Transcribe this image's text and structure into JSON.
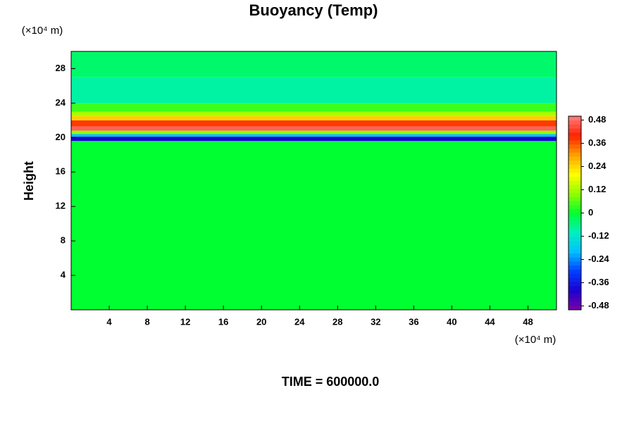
{
  "chart_data": {
    "type": "heatmap",
    "title": "Buoyancy (Temp)",
    "y_unit": "(×10⁴ m)",
    "x_unit": "(×10⁴ m)",
    "y_label": "Height",
    "footer": "TIME = 600000.0",
    "xlim": [
      0,
      51
    ],
    "ylim": [
      0,
      30
    ],
    "xticks": [
      4,
      8,
      12,
      16,
      20,
      24,
      28,
      32,
      36,
      40,
      44,
      48
    ],
    "yticks": [
      4,
      8,
      12,
      16,
      20,
      24,
      28
    ],
    "y_edges": [
      0,
      19.6,
      20.1,
      20.4,
      20.8,
      21.3,
      22.0,
      22.5,
      23.0,
      24.0,
      27.0,
      30
    ],
    "values": [
      0.0,
      -0.4,
      -0.2,
      0.1,
      0.47,
      0.38,
      0.25,
      0.12,
      0.04,
      -0.08,
      -0.04
    ],
    "clim": [
      -0.5,
      0.5
    ],
    "cticks": [
      0.48,
      0.36,
      0.24,
      0.12,
      0,
      -0.12,
      -0.24,
      -0.36,
      -0.48
    ],
    "colormap": [
      "#7a00a8",
      "#1a00d0",
      "#0040ff",
      "#00c0ff",
      "#00f0c0",
      "#00ff30",
      "#90ff00",
      "#ffff00",
      "#ffa000",
      "#ff2000",
      "#ff8080"
    ],
    "color_levels": 48
  }
}
